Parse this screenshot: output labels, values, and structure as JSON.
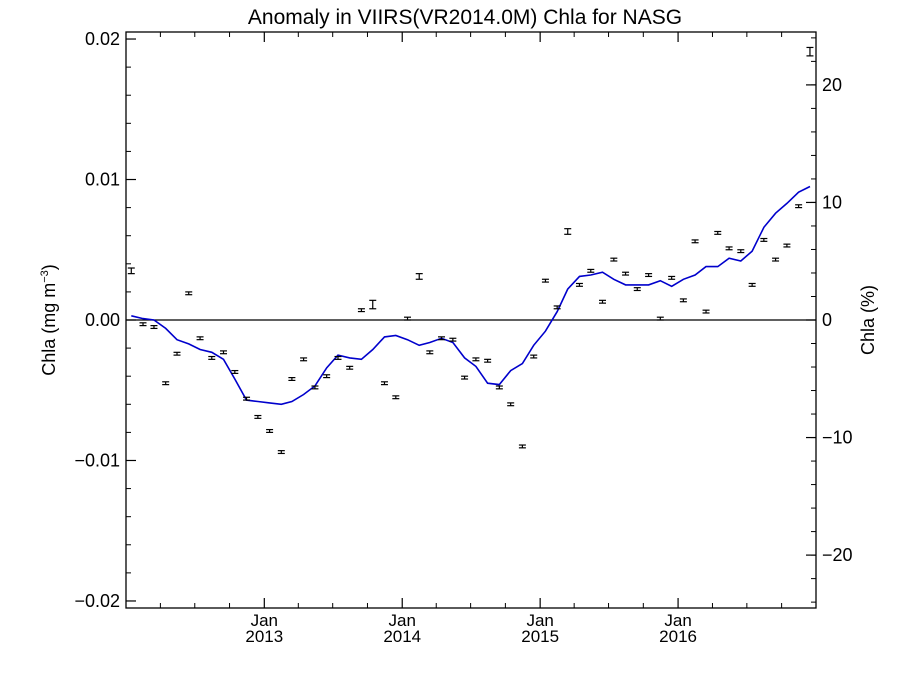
{
  "chart_data": {
    "type": "line",
    "title": "Anomaly in VIIRS(VR2014.0M) Chla for NASG",
    "ylabel_left": "Chla (mg m",
    "ylabel_left_sup": "−3",
    "ylabel_left_close": ")",
    "ylabel_right": "Chla (%)",
    "x_range": [
      "2012-01-01",
      "2016-12-31"
    ],
    "ylim": [
      -0.0205,
      0.0205
    ],
    "ylim_right": [
      -24.5,
      24.5
    ],
    "grid": false,
    "legend": "none",
    "zero_line": 0,
    "colors": {
      "anomaly_line": "#0000cc",
      "points": "#000000",
      "axes": "#000000"
    },
    "y_ticks_left": [
      {
        "value": 0.02,
        "label": "0.02"
      },
      {
        "value": 0.01,
        "label": "0.01"
      },
      {
        "value": 0.0,
        "label": "0.00"
      },
      {
        "value": -0.01,
        "label": "−0.01"
      },
      {
        "value": -0.02,
        "label": "−0.02"
      }
    ],
    "y_ticks_right": [
      {
        "value": 20,
        "label": "20"
      },
      {
        "value": 10,
        "label": "10"
      },
      {
        "value": 0,
        "label": "0"
      },
      {
        "value": -10,
        "label": "−10"
      },
      {
        "value": -20,
        "label": "−20"
      }
    ],
    "x_ticks": [
      {
        "date": "2013-01-01",
        "month": "Jan",
        "year": "2013"
      },
      {
        "date": "2014-01-01",
        "month": "Jan",
        "year": "2014"
      },
      {
        "date": "2015-01-01",
        "month": "Jan",
        "year": "2015"
      },
      {
        "date": "2016-01-01",
        "month": "Jan",
        "year": "2016"
      }
    ],
    "series": [
      {
        "kind": "monthly-points-with-error-bars",
        "x": [
          "2012-01-15",
          "2012-02-15",
          "2012-03-15",
          "2012-04-15",
          "2012-05-15",
          "2012-06-15",
          "2012-07-15",
          "2012-08-15",
          "2012-09-15",
          "2012-10-15",
          "2012-11-15",
          "2012-12-15",
          "2013-01-15",
          "2013-02-15",
          "2013-03-15",
          "2013-04-15",
          "2013-05-15",
          "2013-06-15",
          "2013-07-15",
          "2013-08-15",
          "2013-09-15",
          "2013-10-15",
          "2013-11-15",
          "2013-12-15",
          "2014-01-15",
          "2014-02-15",
          "2014-03-15",
          "2014-04-15",
          "2014-05-15",
          "2014-06-15",
          "2014-07-15",
          "2014-08-15",
          "2014-09-15",
          "2014-10-15",
          "2014-11-15",
          "2014-12-15",
          "2015-01-15",
          "2015-02-15",
          "2015-03-15",
          "2015-04-15",
          "2015-05-15",
          "2015-06-15",
          "2015-07-15",
          "2015-08-15",
          "2015-09-15",
          "2015-10-15",
          "2015-11-15",
          "2015-12-15",
          "2016-01-15",
          "2016-02-15",
          "2016-03-15",
          "2016-04-15",
          "2016-05-15",
          "2016-06-15",
          "2016-07-15",
          "2016-08-15",
          "2016-09-15",
          "2016-10-15",
          "2016-11-15",
          "2016-12-15"
        ],
        "y": [
          0.0035,
          -0.0003,
          -0.0005,
          -0.0045,
          -0.0024,
          0.0019,
          -0.0013,
          -0.0027,
          -0.0023,
          -0.0037,
          -0.0056,
          -0.0069,
          -0.0079,
          -0.0094,
          -0.0042,
          -0.0028,
          -0.0048,
          -0.004,
          -0.0027,
          -0.0034,
          0.0007,
          0.0011,
          -0.0045,
          -0.0055,
          0.0001,
          0.0031,
          -0.0023,
          -0.0013,
          -0.0014,
          -0.0041,
          -0.0028,
          -0.0029,
          -0.0048,
          -0.006,
          -0.009,
          -0.0026,
          0.0028,
          0.0009,
          0.0063,
          0.0025,
          0.0035,
          0.0013,
          0.0043,
          0.0033,
          0.0022,
          0.0032,
          0.0001,
          0.003,
          0.0014,
          0.0056,
          0.0006,
          0.0062,
          0.0051,
          0.0049,
          0.0025,
          0.0057,
          0.0043,
          0.0053,
          0.0081,
          0.0191
        ],
        "err": [
          0.0002,
          0.0001,
          0.0001,
          0.0001,
          0.0001,
          0.0001,
          0.0001,
          0.0001,
          0.0001,
          0.0001,
          0.0001,
          0.0001,
          0.0001,
          0.0001,
          0.0001,
          0.0001,
          0.0001,
          0.0001,
          0.0001,
          0.0001,
          0.0001,
          0.0003,
          0.0001,
          0.0001,
          0.0001,
          0.0002,
          0.0001,
          0.0001,
          0.0001,
          0.0001,
          0.0001,
          0.0001,
          0.0001,
          0.0001,
          0.0001,
          0.0001,
          0.0001,
          0.0001,
          0.0002,
          0.0001,
          0.0001,
          0.0001,
          0.0001,
          0.0001,
          0.0001,
          0.0001,
          0.0001,
          0.0001,
          0.0001,
          0.0001,
          0.0001,
          0.0001,
          0.0001,
          0.0001,
          0.0001,
          0.0001,
          0.0001,
          0.0001,
          0.0001,
          0.0003
        ]
      },
      {
        "kind": "running-mean-line",
        "x": [
          "2012-01-15",
          "2012-02-15",
          "2012-03-15",
          "2012-04-15",
          "2012-05-15",
          "2012-06-15",
          "2012-07-15",
          "2012-08-15",
          "2012-09-15",
          "2012-10-15",
          "2012-11-15",
          "2012-12-15",
          "2013-01-15",
          "2013-02-15",
          "2013-03-15",
          "2013-04-15",
          "2013-05-15",
          "2013-06-15",
          "2013-07-15",
          "2013-08-15",
          "2013-09-15",
          "2013-10-15",
          "2013-11-15",
          "2013-12-15",
          "2014-01-15",
          "2014-02-15",
          "2014-03-15",
          "2014-04-15",
          "2014-05-15",
          "2014-06-15",
          "2014-07-15",
          "2014-08-15",
          "2014-09-15",
          "2014-10-15",
          "2014-11-15",
          "2014-12-15",
          "2015-01-15",
          "2015-02-15",
          "2015-03-15",
          "2015-04-15",
          "2015-05-15",
          "2015-06-15",
          "2015-07-15",
          "2015-08-15",
          "2015-09-15",
          "2015-10-15",
          "2015-11-15",
          "2015-12-15",
          "2016-01-15",
          "2016-02-15",
          "2016-03-15",
          "2016-04-15",
          "2016-05-15",
          "2016-06-15",
          "2016-07-15",
          "2016-08-15",
          "2016-09-15",
          "2016-10-15",
          "2016-11-15",
          "2016-12-15"
        ],
        "y": [
          0.0003,
          0.0001,
          0.0,
          -0.0006,
          -0.0014,
          -0.0017,
          -0.0021,
          -0.0023,
          -0.0028,
          -0.0042,
          -0.0057,
          -0.0058,
          -0.0059,
          -0.006,
          -0.0058,
          -0.0053,
          -0.0047,
          -0.0034,
          -0.0025,
          -0.0027,
          -0.0028,
          -0.0021,
          -0.0012,
          -0.0011,
          -0.0014,
          -0.0018,
          -0.0016,
          -0.0013,
          -0.0016,
          -0.0027,
          -0.0033,
          -0.0045,
          -0.0046,
          -0.0036,
          -0.0031,
          -0.0018,
          -0.0008,
          0.0006,
          0.0022,
          0.0031,
          0.0032,
          0.0034,
          0.0029,
          0.0025,
          0.0025,
          0.0025,
          0.0028,
          0.0024,
          0.0029,
          0.0032,
          0.0038,
          0.0038,
          0.0044,
          0.0042,
          0.0049,
          0.0066,
          0.0076,
          0.0083,
          0.0091,
          0.0095
        ]
      }
    ]
  }
}
